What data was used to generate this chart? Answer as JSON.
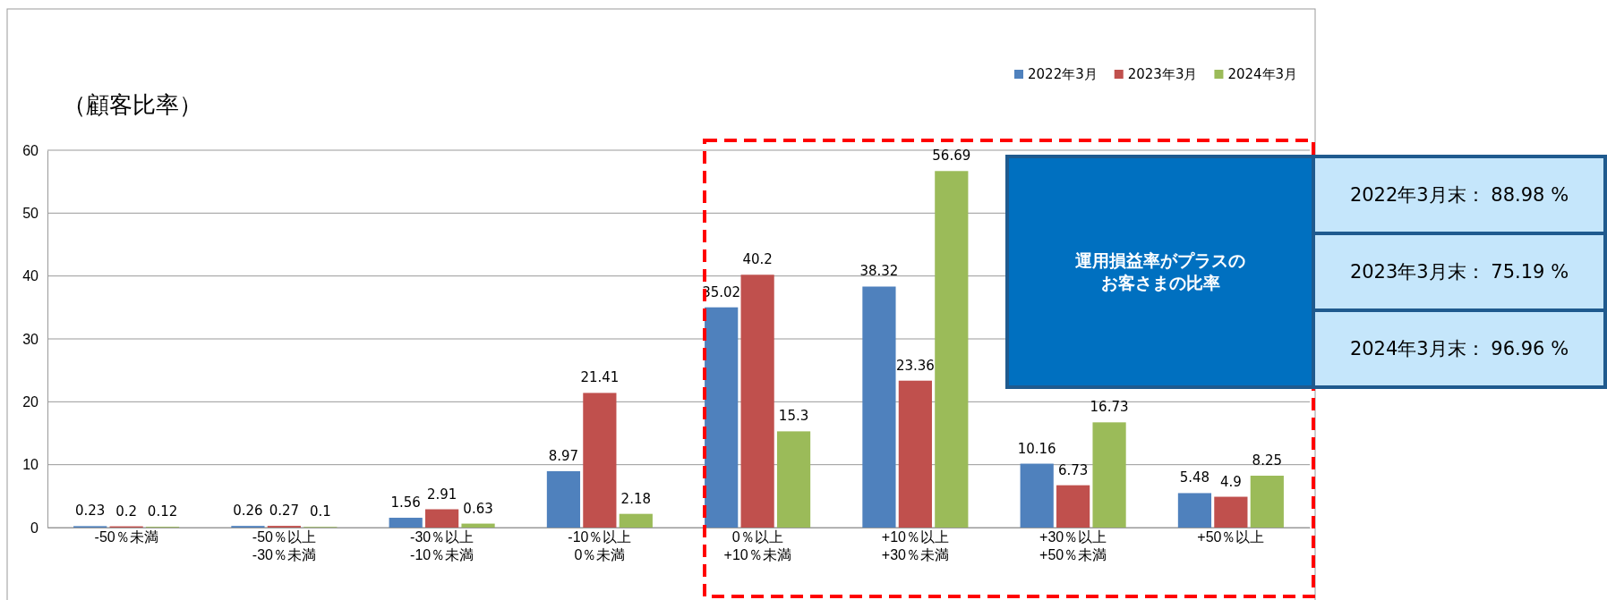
{
  "chart_data": {
    "type": "bar",
    "title": "（顧客比率）",
    "categories": [
      "-50％未満",
      "-50％以上\n-30％未満",
      "-30％以上\n-10％未満",
      "-10％以上\n0％未満",
      "0％以上\n+10％未満",
      "+10％以上\n+30％未満",
      "+30％以上\n+50％未満",
      "+50％以上"
    ],
    "series": [
      {
        "name": "2022年3月",
        "color": "#4f81bd",
        "values": [
          0.23,
          0.26,
          1.56,
          8.97,
          35.02,
          38.32,
          10.16,
          5.48
        ]
      },
      {
        "name": "2023年3月",
        "color": "#c0504d",
        "values": [
          0.2,
          0.27,
          2.91,
          21.41,
          40.2,
          23.36,
          6.73,
          4.9
        ]
      },
      {
        "name": "2024年3月",
        "color": "#9bbb59",
        "values": [
          0.12,
          0.1,
          0.63,
          2.18,
          15.3,
          56.69,
          16.73,
          8.25
        ]
      }
    ],
    "ylim": [
      0,
      60
    ],
    "yticks": [
      0,
      10,
      20,
      30,
      40,
      50,
      60
    ],
    "grid": "y",
    "legend": "top right",
    "data_labels": true,
    "annotations": [
      "運用損益率がプラスのお客さまの比率",
      "2022年3月末： 88.98 %",
      "2023年3月末： 75.19 %",
      "2024年3月末： 96.96 %"
    ]
  }
}
